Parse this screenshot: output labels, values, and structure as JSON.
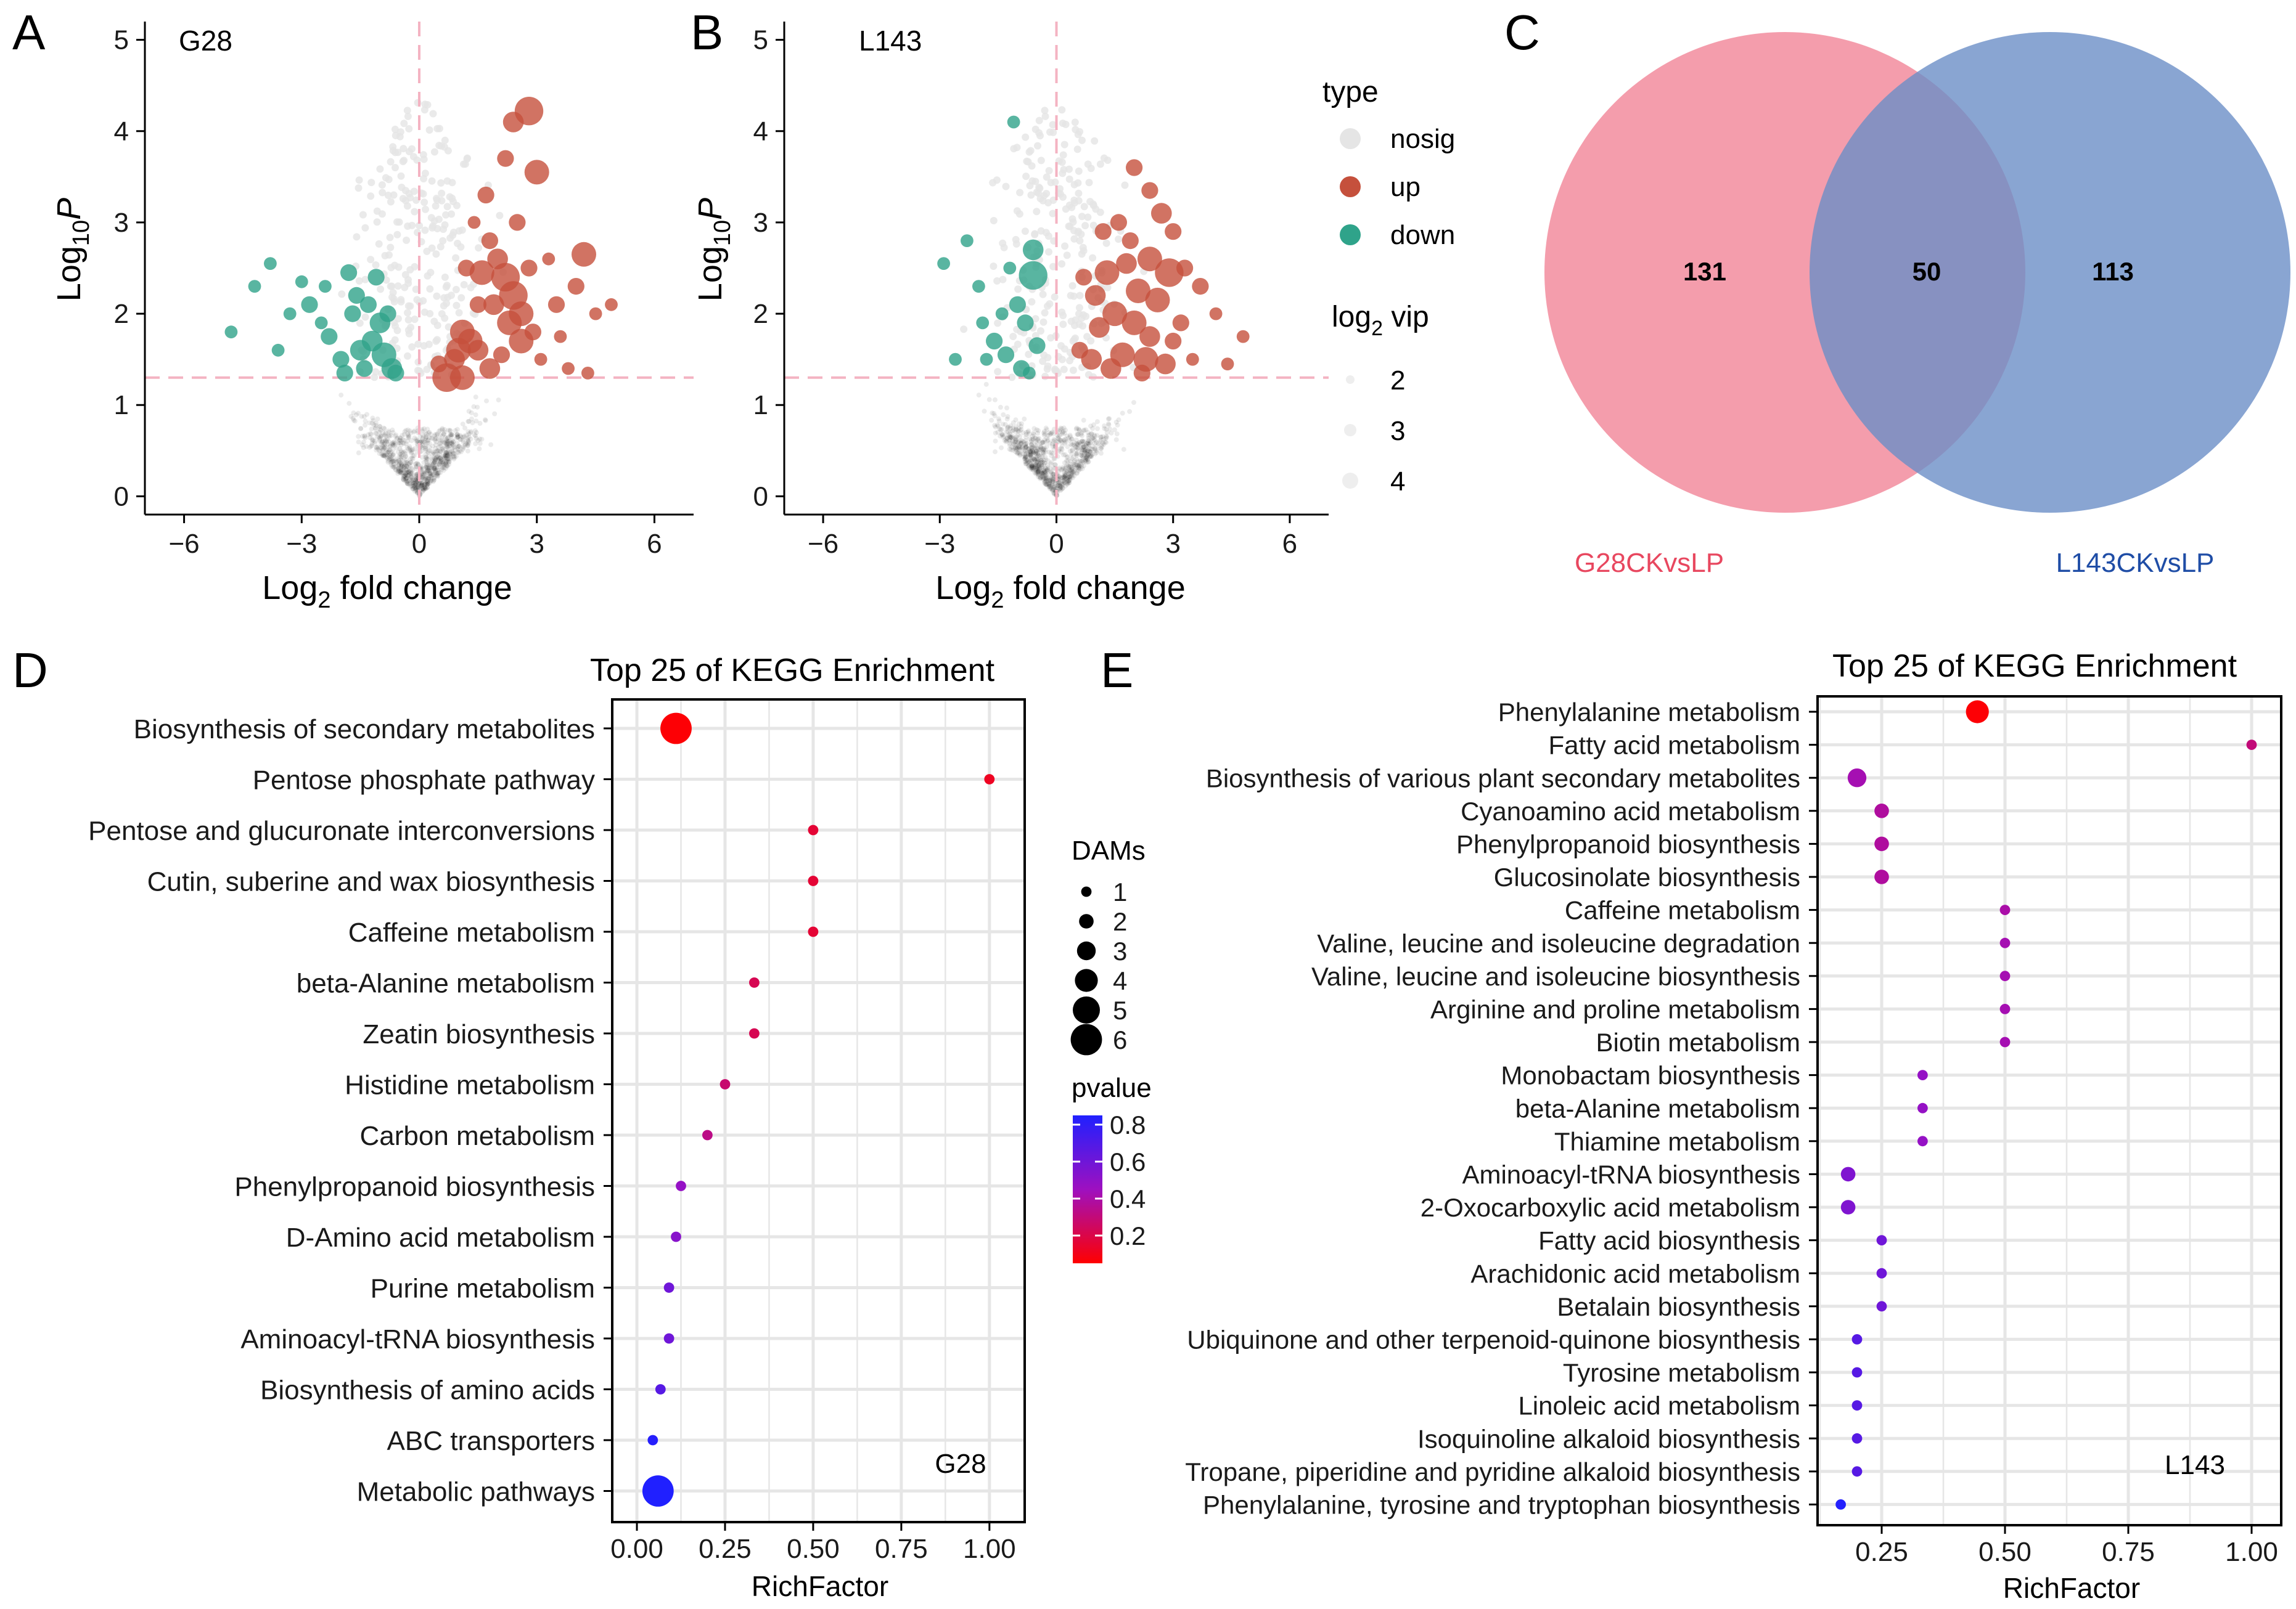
{
  "colors": {
    "nosig": "#e5e5e5",
    "up": "#c5503c",
    "down": "#2fa38a",
    "threshold": "#f4b3c2",
    "venn_left": "#f18497",
    "venn_right": "#6c8ec7",
    "venn_left_label": "#e8475f",
    "venn_right_label": "#1f4da6",
    "pvalue_high": "#2020ff",
    "pvalue_low": "#ff0000",
    "grid": "#e6e6e6"
  },
  "chart_data": [
    {
      "panel": "A",
      "type": "scatter",
      "title": "G28",
      "xlabel": "Log2 fold change",
      "ylabel": "Log10 P",
      "xlim": [
        -7,
        7
      ],
      "ylim": [
        -0.2,
        5.2
      ],
      "xticks": [
        -6,
        -3,
        0,
        3,
        6
      ],
      "yticks": [
        0,
        1,
        2,
        3,
        4,
        5
      ],
      "threshold_x": 0,
      "threshold_y": 1.3,
      "series": [
        {
          "name": "up",
          "points": [
            [
              2.8,
              4.22,
              6
            ],
            [
              2.4,
              4.1,
              4
            ],
            [
              3.0,
              3.55,
              5
            ],
            [
              2.2,
              3.7,
              3
            ],
            [
              1.7,
              3.3,
              3
            ],
            [
              1.6,
              2.45,
              5
            ],
            [
              2.2,
              2.4,
              6
            ],
            [
              2.4,
              2.2,
              6
            ],
            [
              2.6,
              2.0,
              5
            ],
            [
              1.9,
              2.1,
              4
            ],
            [
              2.3,
              1.9,
              5
            ],
            [
              2.6,
              1.7,
              5
            ],
            [
              1.1,
              1.8,
              5
            ],
            [
              1.3,
              1.7,
              5
            ],
            [
              1.0,
              1.6,
              5
            ],
            [
              1.5,
              1.6,
              4
            ],
            [
              0.7,
              1.3,
              6
            ],
            [
              1.1,
              1.3,
              5
            ],
            [
              1.8,
              1.4,
              4
            ],
            [
              4.2,
              2.65,
              5
            ],
            [
              4.0,
              2.3,
              3
            ],
            [
              3.5,
              2.1,
              3
            ],
            [
              4.5,
              2.0,
              2
            ],
            [
              3.6,
              1.75,
              2
            ],
            [
              3.1,
              1.5,
              2
            ],
            [
              3.8,
              1.4,
              2
            ],
            [
              4.3,
              1.35,
              2
            ],
            [
              1.8,
              2.8,
              3
            ],
            [
              2.0,
              2.6,
              4
            ],
            [
              2.8,
              2.5,
              3
            ],
            [
              1.2,
              2.5,
              3
            ],
            [
              1.5,
              2.1,
              3
            ],
            [
              0.5,
              1.45,
              3
            ],
            [
              0.9,
              1.5,
              4
            ],
            [
              2.1,
              1.55,
              3
            ],
            [
              2.9,
              1.8,
              3
            ],
            [
              1.4,
              3.0,
              2
            ],
            [
              2.5,
              3.0,
              3
            ],
            [
              3.3,
              2.6,
              2
            ],
            [
              4.9,
              2.1,
              2
            ]
          ]
        },
        {
          "name": "down",
          "points": [
            [
              -0.9,
              1.55,
              5
            ],
            [
              -1.2,
              1.7,
              4
            ],
            [
              -0.7,
              1.4,
              4
            ],
            [
              -1.0,
              1.9,
              4
            ],
            [
              -1.6,
              2.2,
              3
            ],
            [
              -1.8,
              2.45,
              3
            ],
            [
              -1.7,
              2.0,
              3
            ],
            [
              -2.3,
              1.75,
              3
            ],
            [
              -2.8,
              2.1,
              3
            ],
            [
              -3.0,
              2.35,
              2
            ],
            [
              -3.3,
              2.0,
              2
            ],
            [
              -3.8,
              2.55,
              2
            ],
            [
              -4.2,
              2.3,
              2
            ],
            [
              -4.8,
              1.8,
              2
            ],
            [
              -3.6,
              1.6,
              2
            ],
            [
              -2.0,
              1.5,
              3
            ],
            [
              -1.4,
              1.4,
              3
            ],
            [
              -0.6,
              1.35,
              3
            ],
            [
              -2.5,
              1.9,
              2
            ],
            [
              -1.9,
              1.35,
              3
            ],
            [
              -1.3,
              2.1,
              3
            ],
            [
              -2.4,
              2.3,
              2
            ],
            [
              -0.8,
              2.0,
              3
            ],
            [
              -1.5,
              1.6,
              4
            ],
            [
              -1.1,
              2.4,
              3
            ]
          ]
        }
      ]
    },
    {
      "panel": "B",
      "type": "scatter",
      "title": "L143",
      "xlabel": "Log2 fold change",
      "ylabel": "Log10 P",
      "xlim": [
        -7,
        7
      ],
      "ylim": [
        -0.2,
        5.2
      ],
      "xticks": [
        -6,
        -3,
        0,
        3,
        6
      ],
      "yticks": [
        0,
        1,
        2,
        3,
        4,
        5
      ],
      "threshold_x": 0,
      "threshold_y": 1.3,
      "series": [
        {
          "name": "up",
          "points": [
            [
              2.9,
              2.45,
              6
            ],
            [
              2.1,
              2.25,
              5
            ],
            [
              2.6,
              2.15,
              5
            ],
            [
              1.8,
              2.55,
              4
            ],
            [
              2.4,
              2.6,
              5
            ],
            [
              1.3,
              2.45,
              5
            ],
            [
              1.0,
              2.2,
              4
            ],
            [
              1.5,
              2.0,
              5
            ],
            [
              2.0,
              1.9,
              5
            ],
            [
              1.1,
              1.85,
              4
            ],
            [
              2.4,
              1.75,
              4
            ],
            [
              1.7,
              1.55,
              5
            ],
            [
              2.3,
              1.5,
              5
            ],
            [
              0.9,
              1.5,
              4
            ],
            [
              1.4,
              1.4,
              4
            ],
            [
              2.8,
              1.45,
              4
            ],
            [
              3.0,
              1.7,
              3
            ],
            [
              3.2,
              1.9,
              3
            ],
            [
              2.7,
              3.1,
              4
            ],
            [
              2.0,
              3.6,
              3
            ],
            [
              2.4,
              3.35,
              3
            ],
            [
              3.3,
              2.5,
              3
            ],
            [
              3.7,
              2.3,
              3
            ],
            [
              4.1,
              2.0,
              2
            ],
            [
              4.8,
              1.75,
              2
            ],
            [
              1.2,
              2.9,
              3
            ],
            [
              1.6,
              3.0,
              3
            ],
            [
              3.0,
              2.9,
              3
            ],
            [
              0.6,
              1.6,
              3
            ],
            [
              0.7,
              2.4,
              3
            ],
            [
              3.5,
              1.5,
              2
            ],
            [
              4.4,
              1.45,
              2
            ],
            [
              1.9,
              2.8,
              3
            ],
            [
              2.2,
              1.35,
              3
            ]
          ]
        },
        {
          "name": "down",
          "points": [
            [
              -0.6,
              2.42,
              6
            ],
            [
              -0.6,
              2.7,
              4
            ],
            [
              -0.5,
              1.65,
              3
            ],
            [
              -0.8,
              1.9,
              3
            ],
            [
              -1.0,
              2.1,
              3
            ],
            [
              -1.3,
              1.55,
              3
            ],
            [
              -1.6,
              1.7,
              3
            ],
            [
              -1.8,
              1.5,
              2
            ],
            [
              -2.3,
              2.8,
              2
            ],
            [
              -2.6,
              1.5,
              2
            ],
            [
              -1.1,
              4.1,
              2
            ],
            [
              -1.9,
              1.9,
              2
            ],
            [
              -1.2,
              2.5,
              2
            ],
            [
              -0.9,
              1.4,
              3
            ],
            [
              -2.0,
              2.3,
              2
            ],
            [
              -1.4,
              2.0,
              2
            ],
            [
              -0.7,
              1.35,
              2
            ],
            [
              -2.9,
              2.55,
              2
            ]
          ]
        }
      ]
    },
    {
      "panel": "C",
      "type": "venn",
      "sets": [
        {
          "name": "G28CKvsLP",
          "only": "131"
        },
        {
          "name": "L143CKvsLP",
          "only": "113"
        }
      ],
      "intersection": "50"
    },
    {
      "panel": "D",
      "type": "scatter",
      "title": "Top 25 of KEGG Enrichment",
      "annotation": "G28",
      "xlabel": "RichFactor",
      "xlim": [
        -0.07,
        1.1
      ],
      "xticks": [
        0.0,
        0.25,
        0.5,
        0.75,
        1.0
      ],
      "xtick_labels": [
        "0.00",
        "0.25",
        "0.50",
        "0.75",
        "1.00"
      ],
      "categories": [
        "Biosynthesis of secondary metabolites",
        "Pentose phosphate pathway",
        "Pentose and glucuronate interconversions",
        "Cutin, suberine and wax biosynthesis",
        "Caffeine metabolism",
        "beta-Alanine metabolism",
        "Zeatin biosynthesis",
        "Histidine metabolism",
        "Carbon metabolism",
        "Phenylpropanoid biosynthesis",
        "D-Amino acid metabolism",
        "Purine metabolism",
        "Aminoacyl-tRNA biosynthesis",
        "Biosynthesis of amino acids",
        "ABC transporters",
        "Metabolic pathways"
      ],
      "richfactor": [
        0.111,
        1.0,
        0.5,
        0.5,
        0.5,
        0.333,
        0.333,
        0.25,
        0.2,
        0.125,
        0.111,
        0.091,
        0.091,
        0.067,
        0.045,
        0.06
      ],
      "dams": [
        6,
        1,
        1,
        1,
        1,
        1,
        1,
        1,
        1,
        1,
        1,
        1,
        1,
        1,
        1,
        6
      ],
      "pvalue": [
        0.06,
        0.12,
        0.16,
        0.16,
        0.16,
        0.22,
        0.22,
        0.28,
        0.33,
        0.48,
        0.52,
        0.6,
        0.6,
        0.68,
        0.83,
        0.88
      ]
    },
    {
      "panel": "E",
      "type": "scatter",
      "title": "Top 25 of KEGG Enrichment",
      "annotation": "L143",
      "xlabel": "RichFactor",
      "xlim": [
        0.12,
        1.06
      ],
      "xticks": [
        0.25,
        0.5,
        0.75,
        1.0
      ],
      "xtick_labels": [
        "0.25",
        "0.50",
        "0.75",
        "1.00"
      ],
      "categories": [
        "Phenylalanine metabolism",
        "Fatty acid metabolism",
        "Biosynthesis of various plant secondary metabolites",
        "Cyanoamino acid metabolism",
        "Phenylpropanoid biosynthesis",
        "Glucosinolate biosynthesis",
        "Caffeine metabolism",
        "Valine, leucine and isoleucine degradation",
        "Valine, leucine and isoleucine biosynthesis",
        "Arginine and proline metabolism",
        "Biotin metabolism",
        "Monobactam biosynthesis",
        "beta-Alanine metabolism",
        "Thiamine metabolism",
        "Aminoacyl-tRNA biosynthesis",
        "2-Oxocarboxylic acid metabolism",
        "Fatty acid biosynthesis",
        "Arachidonic acid metabolism",
        "Betalain biosynthesis",
        "Ubiquinone and other terpenoid-quinone biosynthesis",
        "Tyrosine metabolism",
        "Linoleic acid metabolism",
        "Isoquinoline alkaloid biosynthesis",
        "Tropane, piperidine and pyridine alkaloid biosynthesis",
        "Phenylalanine, tyrosine and tryptophan biosynthesis"
      ],
      "richfactor": [
        0.444,
        1.0,
        0.2,
        0.25,
        0.25,
        0.25,
        0.5,
        0.5,
        0.5,
        0.5,
        0.5,
        0.333,
        0.333,
        0.333,
        0.182,
        0.182,
        0.25,
        0.25,
        0.25,
        0.2,
        0.2,
        0.2,
        0.2,
        0.2,
        0.167
      ],
      "dams": [
        4,
        1,
        3,
        2,
        2,
        2,
        1,
        1,
        1,
        1,
        1,
        1,
        1,
        1,
        2,
        2,
        1,
        1,
        1,
        1,
        1,
        1,
        1,
        1,
        1
      ],
      "pvalue": [
        0.06,
        0.3,
        0.42,
        0.38,
        0.38,
        0.38,
        0.4,
        0.42,
        0.42,
        0.42,
        0.42,
        0.48,
        0.48,
        0.48,
        0.55,
        0.55,
        0.6,
        0.6,
        0.6,
        0.68,
        0.68,
        0.68,
        0.68,
        0.68,
        0.84
      ]
    }
  ],
  "labels": {
    "A": "A",
    "B": "B",
    "C": "C",
    "D": "D",
    "E": "E",
    "volcano_xlabel_main": "Log",
    "volcano_xlabel_sub": "2",
    "volcano_xlabel_rest": " fold change",
    "volcano_ylabel_main": "Log",
    "volcano_ylabel_sub": "10",
    "volcano_ylabel_var": "P",
    "legend_type_title": "type",
    "legend_type_items": [
      "nosig",
      "up",
      "down"
    ],
    "legend_vip_title_main": "log",
    "legend_vip_title_sub": "2",
    "legend_vip_title_rest": " vip",
    "legend_vip_items": [
      "2",
      "3",
      "4"
    ],
    "legend_dams_title": "DAMs",
    "legend_dams_items": [
      "1",
      "2",
      "3",
      "4",
      "5",
      "6"
    ],
    "legend_pvalue_title": "pvalue",
    "legend_pvalue_items": [
      "0.8",
      "0.6",
      "0.4",
      "0.2"
    ]
  }
}
